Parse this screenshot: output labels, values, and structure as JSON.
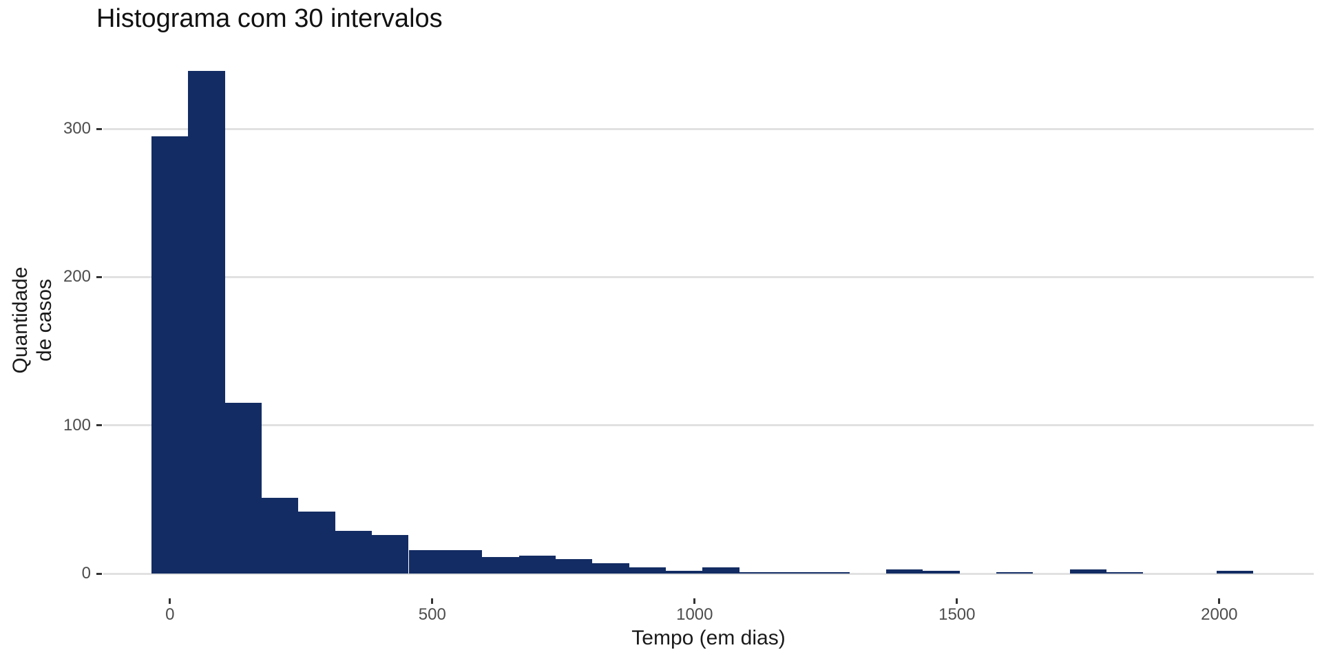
{
  "chart_data": {
    "type": "bar",
    "subtype": "histogram",
    "title": "Histograma com 30 intervalos",
    "xlabel": "Tempo (em dias)",
    "ylabel": "Quantidade\nde casos",
    "bin_start": -35,
    "binwidth": 70,
    "bin_centers": [
      0,
      70,
      140,
      210,
      280,
      350,
      420,
      490,
      560,
      630,
      700,
      770,
      840,
      910,
      980,
      1050,
      1120,
      1190,
      1260,
      1330,
      1400,
      1470,
      1540,
      1610,
      1680,
      1750,
      1820,
      1890,
      1960,
      2030
    ],
    "counts": [
      295,
      339,
      115,
      51,
      42,
      29,
      26,
      16,
      16,
      11,
      12,
      10,
      7,
      4,
      2,
      4,
      1,
      1,
      1,
      0,
      3,
      2,
      0,
      1,
      0,
      3,
      1,
      0,
      0,
      2
    ],
    "x_ticks": [
      0,
      500,
      1000,
      1500,
      2000
    ],
    "x_tick_labels": [
      "0",
      "500",
      "1000",
      "1500",
      "2000"
    ],
    "y_ticks": [
      0,
      100,
      200,
      300
    ],
    "y_tick_labels": [
      "0",
      "100",
      "200",
      "300"
    ],
    "xlim": [
      -127,
      2180
    ],
    "ylim": [
      -16.7,
      356.2
    ],
    "grid": "horizontal-major-only",
    "legend_position": "none",
    "colors": {
      "bar_fill": "#132c63",
      "gridline": "#e1e1e1",
      "tick_mark": "#333333",
      "tick_label": "#4d4d4d",
      "text": "#1a1a1a",
      "background": "#ffffff"
    }
  }
}
